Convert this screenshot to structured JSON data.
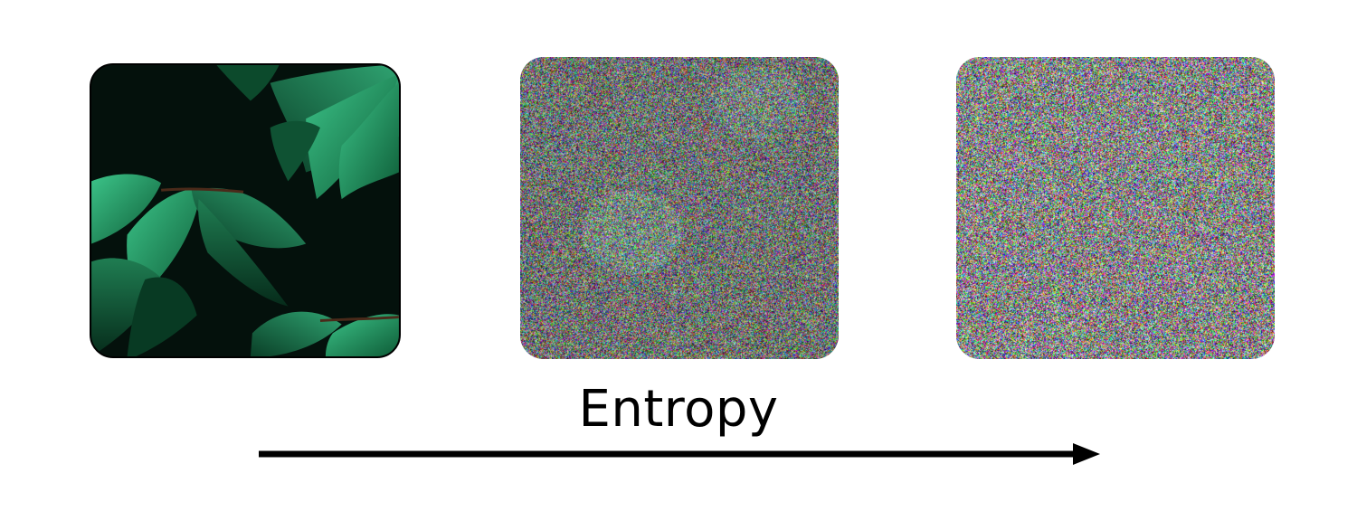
{
  "diagram": {
    "axis_label": "Entropy",
    "panels": [
      {
        "id": "original",
        "content": "leaves-photo",
        "noise_level": 0.0
      },
      {
        "id": "noisy",
        "content": "leaves-photo",
        "noise_level": 0.8
      },
      {
        "id": "noise",
        "content": "pure-noise",
        "noise_level": 1.0
      }
    ],
    "colors": {
      "background": "#ffffff",
      "arrow": "#000000",
      "leaf_dark": "#0b4a2c",
      "leaf_light": "#2fa36a",
      "photo_background": "#04110c"
    }
  }
}
